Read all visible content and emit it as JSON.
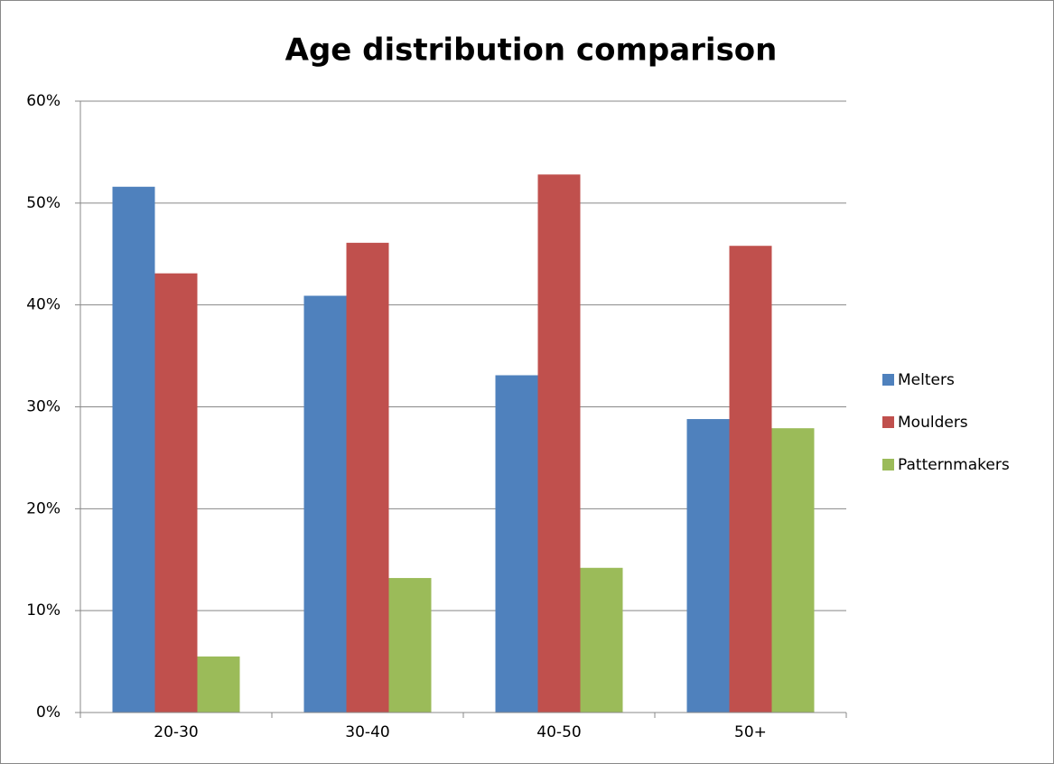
{
  "chart_data": {
    "type": "bar",
    "title": "Age distribution comparison",
    "categories": [
      "20-30",
      "30-40",
      "40-50",
      "50+"
    ],
    "series": [
      {
        "name": "Melters",
        "color": "#4f81bd",
        "values": [
          51.6,
          40.9,
          33.1,
          28.8
        ]
      },
      {
        "name": "Moulders",
        "color": "#c0504d",
        "values": [
          43.1,
          46.1,
          52.8,
          45.8
        ]
      },
      {
        "name": "Patternmakers",
        "color": "#9bbb59",
        "values": [
          5.5,
          13.2,
          14.2,
          27.9
        ]
      }
    ],
    "ylim": [
      0,
      60
    ],
    "yticks": [
      {
        "value": 0,
        "label": "0%"
      },
      {
        "value": 10,
        "label": "10%"
      },
      {
        "value": 20,
        "label": "20%"
      },
      {
        "value": 30,
        "label": "30%"
      },
      {
        "value": 40,
        "label": "40%"
      },
      {
        "value": 50,
        "label": "50%"
      },
      {
        "value": 60,
        "label": "60%"
      }
    ],
    "grid": true,
    "legend": "right"
  }
}
